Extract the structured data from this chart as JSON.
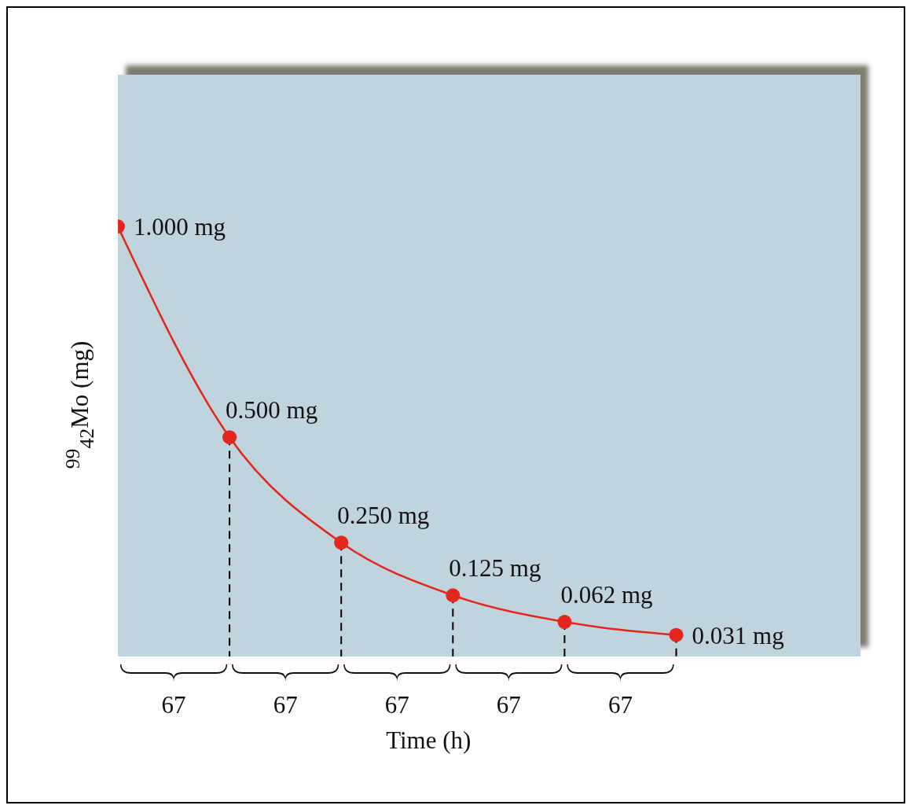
{
  "chart_data": {
    "type": "line",
    "xlabel": "Time (h)",
    "ylabel": "$^{99}$$_{42}$Mo (mg)",
    "categories": [
      null,
      null,
      null,
      null,
      null,
      null
    ],
    "series": [
      {
        "color": "#e3261e",
        "values": [
          1.0,
          0.5,
          0.25,
          0.125,
          0.062,
          0.031
        ],
        "value_labels": [
          "1.000 mg",
          "0.500 mg",
          "0.250 mg",
          "0.125 mg",
          "0.062 mg",
          "0.031 mg"
        ]
      }
    ],
    "ylim": [
      -0.02,
      1.36
    ],
    "tick_labels": false,
    "marker": "circle",
    "annotations": [
      "67",
      "67",
      "67",
      "67",
      "67"
    ]
  }
}
